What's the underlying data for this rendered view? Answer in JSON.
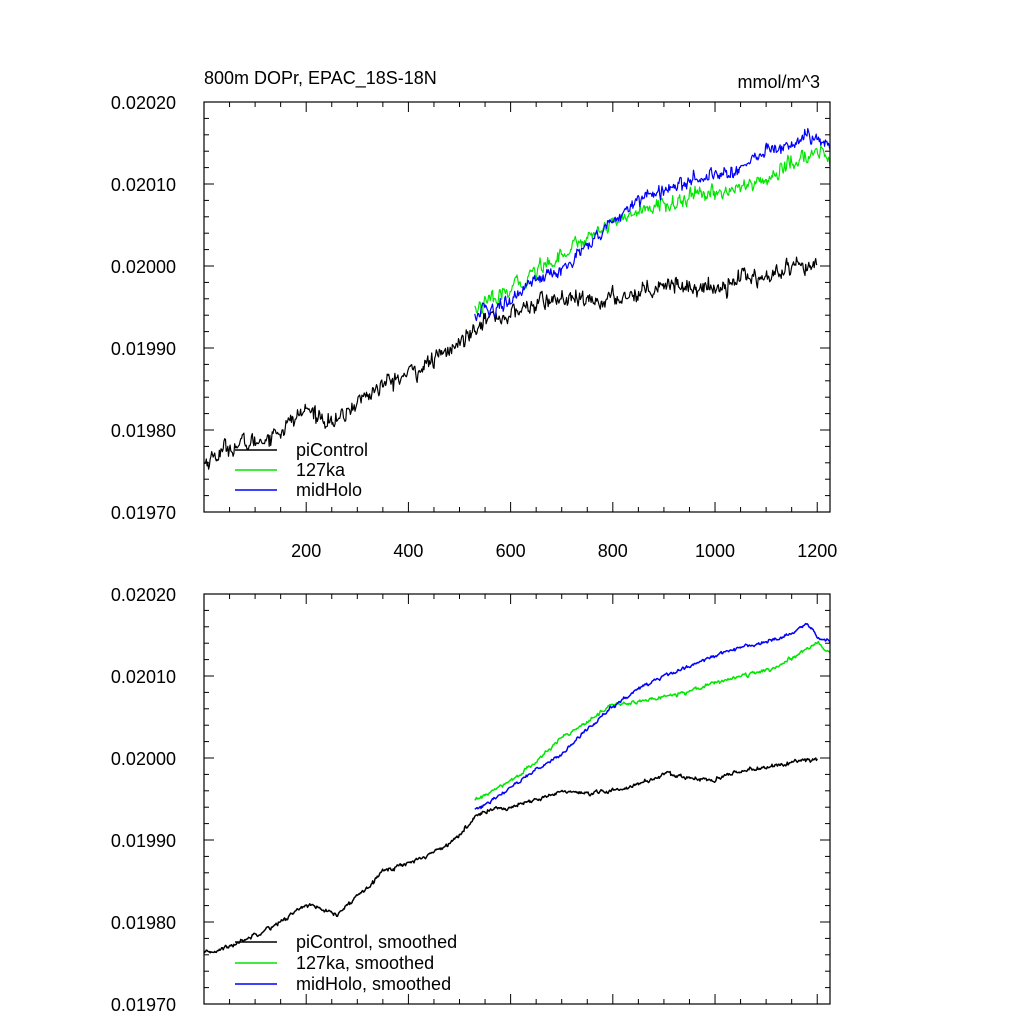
{
  "figure": {
    "title_left": "800m DOPr, EPAC_18S-18N",
    "title_right": "mmol/m^3"
  },
  "colors": {
    "piControl": "#000000",
    "127ka": "#00e600",
    "midHolo": "#0000ff"
  },
  "chart_data": [
    {
      "type": "line",
      "panel": "raw",
      "title": "800m DOPr, EPAC_18S-18N",
      "units": "mmol/m^3",
      "xlabel": "",
      "ylabel": "",
      "xlim": [
        0,
        1225
      ],
      "ylim": [
        0.0197,
        0.0202
      ],
      "xticks": [
        200,
        400,
        600,
        800,
        1000,
        1200
      ],
      "xtick_labels": [
        "200",
        "400",
        "600",
        "800",
        "1000",
        "1200"
      ],
      "yticks": [
        0.0197,
        0.0198,
        0.0199,
        0.02,
        0.0201,
        0.0202
      ],
      "ytick_labels": [
        "0.01970",
        "0.01980",
        "0.01990",
        "0.02000",
        "0.02010",
        "0.02020"
      ],
      "grid": false,
      "legend_position": "bottom-left",
      "series": [
        {
          "name": "piControl",
          "color": "#000000",
          "noise": 4.8e-06,
          "x": [
            0,
            50,
            100,
            150,
            200,
            260,
            300,
            350,
            400,
            450,
            500,
            540,
            600,
            650,
            700,
            750,
            800,
            850,
            900,
            950,
            1000,
            1050,
            1100,
            1150,
            1200
          ],
          "y": [
            0.01976,
            0.01978,
            0.019785,
            0.0198,
            0.019825,
            0.019808,
            0.019835,
            0.019855,
            0.019868,
            0.019885,
            0.019905,
            0.019935,
            0.01994,
            0.019955,
            0.01996,
            0.019955,
            0.01996,
            0.019968,
            0.01998,
            0.019975,
            0.019972,
            0.019988,
            0.019985,
            0.019995,
            0.019998
          ]
        },
        {
          "name": "127ka",
          "color": "#00e600",
          "noise": 4.2e-06,
          "x": [
            530,
            560,
            600,
            650,
            700,
            750,
            800,
            850,
            900,
            950,
            1000,
            1050,
            1100,
            1150,
            1200,
            1225
          ],
          "y": [
            0.019948,
            0.019955,
            0.01997,
            0.019995,
            0.020015,
            0.020035,
            0.020055,
            0.020065,
            0.020075,
            0.020082,
            0.02009,
            0.020095,
            0.020105,
            0.020125,
            0.02014,
            0.020128
          ]
        },
        {
          "name": "midHolo",
          "color": "#0000ff",
          "noise": 4.2e-06,
          "x": [
            530,
            560,
            600,
            650,
            700,
            750,
            800,
            850,
            900,
            950,
            1000,
            1050,
            1100,
            1150,
            1180,
            1200,
            1225
          ],
          "y": [
            0.01994,
            0.019945,
            0.019962,
            0.01998,
            0.019995,
            0.020025,
            0.020052,
            0.02008,
            0.020095,
            0.020105,
            0.020112,
            0.02012,
            0.02014,
            0.020148,
            0.02016,
            0.02015,
            0.020142
          ]
        }
      ]
    },
    {
      "type": "line",
      "panel": "smoothed",
      "title": "",
      "xlabel": "",
      "ylabel": "",
      "xlim": [
        0,
        1225
      ],
      "ylim": [
        0.0197,
        0.0202
      ],
      "xticks": [
        200,
        400,
        600,
        800,
        1000,
        1200
      ],
      "xtick_labels": [],
      "yticks": [
        0.0197,
        0.0198,
        0.0199,
        0.02,
        0.0201,
        0.0202
      ],
      "ytick_labels": [
        "0.01970",
        "0.01980",
        "0.01990",
        "0.02000",
        "0.02010",
        "0.02020"
      ],
      "grid": false,
      "legend_position": "bottom-left",
      "series": [
        {
          "name": "piControl, smoothed",
          "color": "#000000",
          "noise": 1.2e-06,
          "x": [
            0,
            50,
            100,
            150,
            200,
            260,
            300,
            350,
            400,
            450,
            500,
            540,
            600,
            650,
            700,
            750,
            800,
            850,
            900,
            950,
            1000,
            1050,
            1100,
            1150,
            1200
          ],
          "y": [
            0.019761,
            0.01977,
            0.019785,
            0.0198,
            0.019822,
            0.019808,
            0.019832,
            0.019862,
            0.019872,
            0.019885,
            0.019905,
            0.019935,
            0.01994,
            0.019948,
            0.01996,
            0.019955,
            0.01996,
            0.019968,
            0.01998,
            0.019976,
            0.019972,
            0.019985,
            0.019988,
            0.019995,
            0.019998
          ]
        },
        {
          "name": "127ka, smoothed",
          "color": "#00e600",
          "noise": 1e-06,
          "x": [
            530,
            560,
            600,
            650,
            700,
            750,
            800,
            850,
            900,
            950,
            1000,
            1050,
            1100,
            1150,
            1200,
            1225
          ],
          "y": [
            0.019948,
            0.019958,
            0.019972,
            0.019995,
            0.020025,
            0.020045,
            0.020065,
            0.020068,
            0.020075,
            0.020082,
            0.020092,
            0.0201,
            0.020106,
            0.02012,
            0.020142,
            0.020128
          ]
        },
        {
          "name": "midHolo, smoothed",
          "color": "#0000ff",
          "noise": 1e-06,
          "x": [
            530,
            560,
            600,
            650,
            700,
            750,
            800,
            850,
            900,
            950,
            1000,
            1050,
            1100,
            1150,
            1180,
            1200,
            1225
          ],
          "y": [
            0.019938,
            0.019945,
            0.019965,
            0.019985,
            0.020005,
            0.020035,
            0.020062,
            0.020085,
            0.0201,
            0.020112,
            0.020125,
            0.020135,
            0.020142,
            0.020152,
            0.020165,
            0.020148,
            0.020142
          ]
        }
      ]
    }
  ]
}
